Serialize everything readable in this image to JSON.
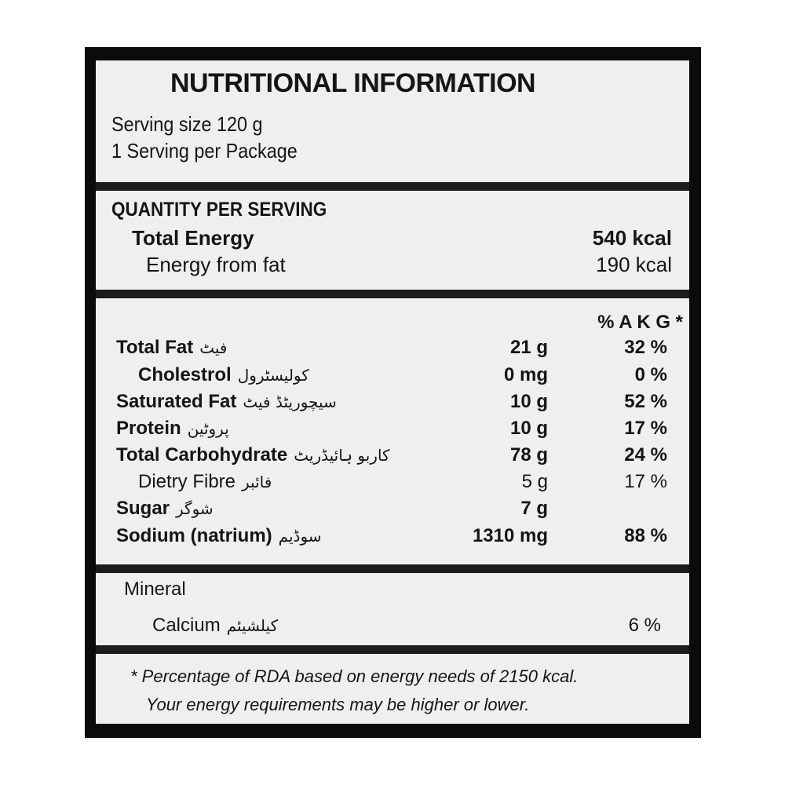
{
  "title": "NUTRITIONAL INFORMATION",
  "serving_size": "Serving size  120 g",
  "servings_per_package": "1 Serving per Package",
  "quantity_header": "QUANTITY PER SERVING",
  "energy": [
    {
      "label": "Total Energy",
      "value": "540 kcal"
    },
    {
      "label": "Energy from fat",
      "value": "190 kcal"
    }
  ],
  "akg_header": "% A K G *",
  "nutrients": [
    {
      "label": "Total Fat",
      "urdu": "فیٹ",
      "amount": "21 g",
      "percent": "32 %"
    },
    {
      "label": "Cholestrol",
      "urdu": "کولیسٹرول",
      "amount": "0 mg",
      "percent": "0 %"
    },
    {
      "label": "Saturated Fat",
      "urdu": "سیچوریٹڈ فیٹ",
      "amount": "10 g",
      "percent": "52 %"
    },
    {
      "label": "Protein",
      "urdu": "پروٹین",
      "amount": "10 g",
      "percent": "17 %"
    },
    {
      "label": "Total Carbohydrate",
      "urdu": "کاربو ہائیڈریٹ",
      "amount": "78 g",
      "percent": "24 %"
    },
    {
      "label": "Dietry Fibre",
      "urdu": "فائبر",
      "amount": "5 g",
      "percent": "17 %"
    },
    {
      "label": "Sugar",
      "urdu": "شوگر",
      "amount": "7 g",
      "percent": ""
    },
    {
      "label": "Sodium (natrium)",
      "urdu": "سوڈیم",
      "amount": "1310 mg",
      "percent": "88 %"
    }
  ],
  "mineral": {
    "header": "Mineral",
    "items": [
      {
        "label": "Calcium",
        "urdu": "کیلشیئم",
        "percent": "6 %"
      }
    ]
  },
  "footnote": [
    "* Percentage of RDA based on energy needs of 2150 kcal.",
    "Your energy requirements may be higher or lower."
  ]
}
